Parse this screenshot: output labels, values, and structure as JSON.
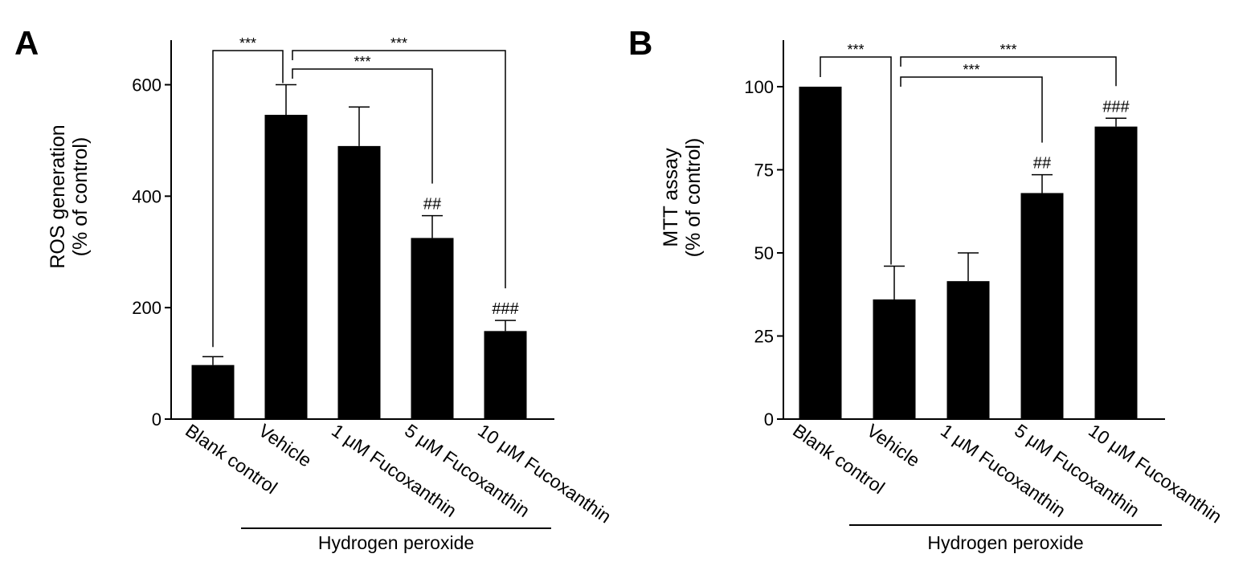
{
  "chart_data": [
    {
      "type": "bar",
      "panel": "A",
      "categories": [
        "Blank control",
        "Vehicle",
        "1 μM Fucoxanthin",
        "5 μM Fucoxanthin",
        "10 μM Fucoxanthin"
      ],
      "values": [
        97,
        546,
        490,
        325,
        158
      ],
      "errors": [
        15,
        54,
        70,
        40,
        19
      ],
      "annotations": [
        "",
        "",
        "",
        "##",
        "###"
      ],
      "ylabel": [
        "ROS generation",
        "(% of control)"
      ],
      "ylim": [
        0,
        680
      ],
      "yticks": [
        0,
        200,
        400,
        600
      ],
      "group_label": "Hydrogen peroxide",
      "group_range": [
        1,
        4
      ],
      "significance": [
        {
          "from": 0,
          "to": 1,
          "label": "***"
        },
        {
          "from": 1,
          "to": 3,
          "label": "***"
        },
        {
          "from": 1,
          "to": 4,
          "label": "***"
        }
      ]
    },
    {
      "type": "bar",
      "panel": "B",
      "categories": [
        "Blank control",
        "Vehicle",
        "1 μM Fucoxanthin",
        "5 μM Fucoxanthin",
        "10 μM Fucoxanthin"
      ],
      "values": [
        100,
        36,
        41.5,
        68,
        88
      ],
      "errors": [
        0,
        10,
        8.5,
        5.5,
        2.5
      ],
      "annotations": [
        "",
        "",
        "",
        "##",
        "###"
      ],
      "ylabel": [
        "MTT assay",
        "(% of control)"
      ],
      "ylim": [
        0,
        114
      ],
      "yticks": [
        0,
        25,
        50,
        75,
        100
      ],
      "group_label": "Hydrogen peroxide",
      "group_range": [
        1,
        4
      ],
      "significance": [
        {
          "from": 0,
          "to": 1,
          "label": "***"
        },
        {
          "from": 1,
          "to": 3,
          "label": "***"
        },
        {
          "from": 1,
          "to": 4,
          "label": "***"
        }
      ]
    }
  ]
}
